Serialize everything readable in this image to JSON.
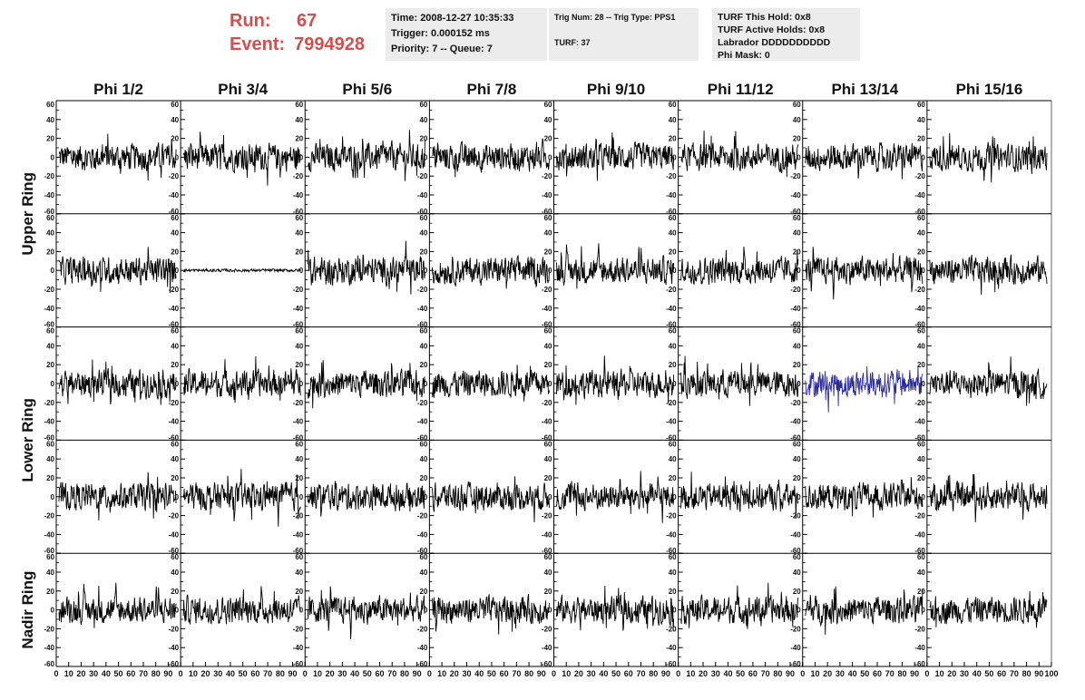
{
  "header": {
    "run_label": "Run:",
    "run_value": "67",
    "event_label": "Event:",
    "event_value": "7994928"
  },
  "info_time": {
    "time": "Time: 2008-12-27 10:35:33",
    "trigger": "Trigger: 0.000152 ms",
    "priority": "Priority: 7 -- Queue: 7"
  },
  "info_trig": {
    "trig": "Trig Num: 28 -- Trig Type: PPS1",
    "turf": "TURF: 37"
  },
  "info_turf": {
    "hold": "TURF This Hold: 0x8",
    "active": "TURF Active Holds: 0x8",
    "labrador": "Labrador DDDDDDDDDD",
    "phimask": "Phi Mask: 0"
  },
  "chart_data": {
    "type": "line",
    "columns": [
      "Phi 1/2",
      "Phi 3/4",
      "Phi 5/6",
      "Phi 7/8",
      "Phi 9/10",
      "Phi 11/12",
      "Phi 13/14",
      "Phi 15/16"
    ],
    "row_labels": [
      {
        "label": "Upper Ring",
        "rows": [
          0,
          1
        ]
      },
      {
        "label": "Lower Ring",
        "rows": [
          2,
          3
        ]
      },
      {
        "label": "Nadir Ring",
        "rows": [
          4
        ]
      }
    ],
    "ylim": [
      -60,
      60
    ],
    "xlim": [
      0,
      100
    ],
    "y_ticks": [
      "60",
      "40",
      "20",
      "0",
      "-20",
      "-40",
      "-60"
    ],
    "x_ticks": [
      "0",
      "10",
      "20",
      "30",
      "40",
      "50",
      "60",
      "70",
      "80",
      "90",
      "100"
    ],
    "rows": 5,
    "line_color": "#000000",
    "highlight_color": "#2b2b9a",
    "highlighted_panel": {
      "row": 2,
      "col": 6
    },
    "quiet_panel": {
      "row": 1,
      "col": 1,
      "amplitude": 2
    },
    "typical_amplitude": 18,
    "samples_per_trace": 260
  }
}
